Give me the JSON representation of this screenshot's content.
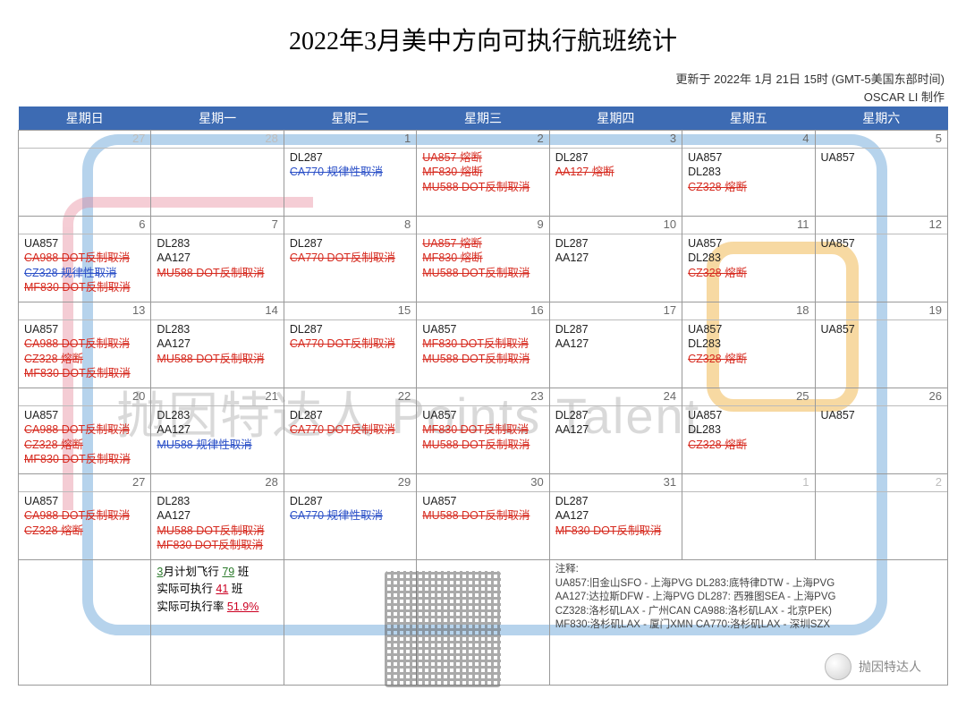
{
  "title": "2022年3月美中方向可执行航班统计",
  "meta_line1": "更新于 2022年 1月 21日 15时 (GMT-5美国东部时间)",
  "meta_line2": "OSCAR LI 制作",
  "watermark_text": "抛因特达人 Points Talent",
  "badge_text": "抛因特达人",
  "colors": {
    "header_bg": "#3d6bb3",
    "normal": "#222222",
    "red_strike": "#d62a1f",
    "blue_strike": "#2a4fc7",
    "grid": "#999999"
  },
  "weekdays": [
    "星期日",
    "星期一",
    "星期二",
    "星期三",
    "星期四",
    "星期五",
    "星期六"
  ],
  "cells": [
    [
      {
        "num": "27",
        "other": true,
        "flights": []
      },
      {
        "num": "28",
        "other": true,
        "flights": []
      },
      {
        "num": "1",
        "flights": [
          {
            "t": "DL287",
            "s": "normal"
          },
          {
            "t": "CA770 规律性取消",
            "s": "blue"
          }
        ]
      },
      {
        "num": "2",
        "flights": [
          {
            "t": "UA857 熔断",
            "s": "red"
          },
          {
            "t": "MF830 熔断",
            "s": "red"
          },
          {
            "t": "MU588 DOT反制取消",
            "s": "red"
          }
        ]
      },
      {
        "num": "3",
        "flights": [
          {
            "t": "DL287",
            "s": "normal"
          },
          {
            "t": "AA127 熔断",
            "s": "red"
          }
        ]
      },
      {
        "num": "4",
        "flights": [
          {
            "t": "UA857",
            "s": "normal"
          },
          {
            "t": "DL283",
            "s": "normal"
          },
          {
            "t": "CZ328 熔断",
            "s": "red"
          }
        ]
      },
      {
        "num": "5",
        "flights": [
          {
            "t": "UA857",
            "s": "normal"
          }
        ]
      }
    ],
    [
      {
        "num": "6",
        "flights": [
          {
            "t": "UA857",
            "s": "normal"
          },
          {
            "t": "CA988  DOT反制取消",
            "s": "red"
          },
          {
            "t": "CZ328 规律性取消",
            "s": "blue"
          },
          {
            "t": "MF830  DOT反制取消",
            "s": "red"
          }
        ]
      },
      {
        "num": "7",
        "flights": [
          {
            "t": "DL283",
            "s": "normal"
          },
          {
            "t": "AA127",
            "s": "normal"
          },
          {
            "t": "MU588 DOT反制取消",
            "s": "red"
          }
        ]
      },
      {
        "num": "8",
        "flights": [
          {
            "t": "DL287",
            "s": "normal"
          },
          {
            "t": "CA770 DOT反制取消",
            "s": "red"
          }
        ]
      },
      {
        "num": "9",
        "flights": [
          {
            "t": "UA857 熔断",
            "s": "red"
          },
          {
            "t": "MF830 熔断",
            "s": "red"
          },
          {
            "t": "MU588 DOT反制取消",
            "s": "red"
          }
        ]
      },
      {
        "num": "10",
        "flights": [
          {
            "t": "DL287",
            "s": "normal"
          },
          {
            "t": "AA127",
            "s": "normal"
          }
        ]
      },
      {
        "num": "11",
        "flights": [
          {
            "t": "UA857",
            "s": "normal"
          },
          {
            "t": "DL283",
            "s": "normal"
          },
          {
            "t": "CZ328 熔断",
            "s": "red"
          }
        ]
      },
      {
        "num": "12",
        "flights": [
          {
            "t": "UA857",
            "s": "normal"
          }
        ]
      }
    ],
    [
      {
        "num": "13",
        "flights": [
          {
            "t": "UA857",
            "s": "normal"
          },
          {
            "t": "CA988  DOT反制取消",
            "s": "red"
          },
          {
            "t": "CZ328 熔断",
            "s": "red"
          },
          {
            "t": "MF830  DOT反制取消",
            "s": "red"
          }
        ]
      },
      {
        "num": "14",
        "flights": [
          {
            "t": "DL283",
            "s": "normal"
          },
          {
            "t": "AA127",
            "s": "normal"
          },
          {
            "t": "MU588 DOT反制取消",
            "s": "red"
          }
        ]
      },
      {
        "num": "15",
        "flights": [
          {
            "t": "DL287",
            "s": "normal"
          },
          {
            "t": "CA770 DOT反制取消",
            "s": "red"
          }
        ]
      },
      {
        "num": "16",
        "flights": [
          {
            "t": "UA857",
            "s": "normal"
          },
          {
            "t": "MF830  DOT反制取消",
            "s": "red"
          },
          {
            "t": "MU588 DOT反制取消",
            "s": "red"
          }
        ]
      },
      {
        "num": "17",
        "flights": [
          {
            "t": "DL287",
            "s": "normal"
          },
          {
            "t": "AA127",
            "s": "normal"
          }
        ]
      },
      {
        "num": "18",
        "flights": [
          {
            "t": "UA857",
            "s": "normal"
          },
          {
            "t": "DL283",
            "s": "normal"
          },
          {
            "t": "CZ328 熔断",
            "s": "red"
          }
        ]
      },
      {
        "num": "19",
        "flights": [
          {
            "t": "UA857",
            "s": "normal"
          }
        ]
      }
    ],
    [
      {
        "num": "20",
        "flights": [
          {
            "t": "UA857",
            "s": "normal"
          },
          {
            "t": "CA988  DOT反制取消",
            "s": "red"
          },
          {
            "t": "CZ328 熔断",
            "s": "red"
          },
          {
            "t": "MF830  DOT反制取消",
            "s": "red"
          }
        ]
      },
      {
        "num": "21",
        "flights": [
          {
            "t": "DL283",
            "s": "normal"
          },
          {
            "t": "AA127",
            "s": "normal"
          },
          {
            "t": "MU588 规律性取消",
            "s": "blue"
          }
        ]
      },
      {
        "num": "22",
        "flights": [
          {
            "t": "DL287",
            "s": "normal"
          },
          {
            "t": "CA770 DOT反制取消",
            "s": "red"
          }
        ]
      },
      {
        "num": "23",
        "flights": [
          {
            "t": "UA857",
            "s": "normal"
          },
          {
            "t": "MF830  DOT反制取消",
            "s": "red"
          },
          {
            "t": "MU588 DOT反制取消",
            "s": "red"
          }
        ]
      },
      {
        "num": "24",
        "flights": [
          {
            "t": "DL287",
            "s": "normal"
          },
          {
            "t": "AA127",
            "s": "normal"
          }
        ]
      },
      {
        "num": "25",
        "flights": [
          {
            "t": "UA857",
            "s": "normal"
          },
          {
            "t": "DL283",
            "s": "normal"
          },
          {
            "t": "CZ328 熔断",
            "s": "red"
          }
        ]
      },
      {
        "num": "26",
        "flights": [
          {
            "t": "UA857",
            "s": "normal"
          }
        ]
      }
    ],
    [
      {
        "num": "27",
        "flights": [
          {
            "t": "UA857",
            "s": "normal"
          },
          {
            "t": "CA988  DOT反制取消",
            "s": "red"
          },
          {
            "t": "CZ328 熔断",
            "s": "red"
          }
        ]
      },
      {
        "num": "28",
        "flights": [
          {
            "t": "DL283",
            "s": "normal"
          },
          {
            "t": "AA127",
            "s": "normal"
          },
          {
            "t": "MU588  DOT反制取消",
            "s": "red"
          },
          {
            "t": "MF830  DOT反制取消",
            "s": "red"
          }
        ]
      },
      {
        "num": "29",
        "flights": [
          {
            "t": "DL287",
            "s": "normal"
          },
          {
            "t": "CA770 规律性取消",
            "s": "blue"
          }
        ]
      },
      {
        "num": "30",
        "flights": [
          {
            "t": "UA857",
            "s": "normal"
          },
          {
            "t": "MU588 DOT反制取消",
            "s": "red"
          }
        ]
      },
      {
        "num": "31",
        "flights": [
          {
            "t": "DL287",
            "s": "normal"
          },
          {
            "t": "AA127",
            "s": "normal"
          },
          {
            "t": "MF830  DOT反制取消",
            "s": "red"
          }
        ]
      },
      {
        "num": "1",
        "other": true,
        "flights": []
      },
      {
        "num": "2",
        "other": true,
        "flights": []
      }
    ]
  ],
  "summary": {
    "line1_a": "3",
    "line1_b": "月计划飞行 ",
    "line1_c": "79",
    "line1_d": " 班",
    "line2_a": "实际可执行 ",
    "line2_b": "41",
    "line2_c": " 班",
    "line3_a": "实际可执行率 ",
    "line3_b": "51.9%"
  },
  "legend": {
    "header": "注释:",
    "lines": [
      "UA857:旧金山SFO - 上海PVG   DL283:底特律DTW - 上海PVG",
      "AA127:达拉斯DFW - 上海PVG   DL287: 西雅图SEA - 上海PVG",
      "CZ328:洛杉矶LAX - 广州CAN   CA988:洛杉矶LAX - 北京PEK)",
      "MF830:洛杉矶LAX - 厦门XMN   CA770:洛杉矶LAX - 深圳SZX"
    ]
  }
}
